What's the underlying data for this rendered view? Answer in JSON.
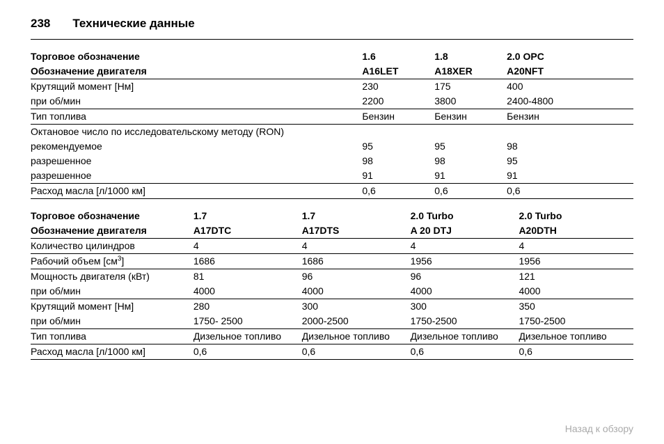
{
  "page_number": "238",
  "section_title": "Технические данные",
  "table1": {
    "columns": [
      "",
      "1.6",
      "1.8",
      "2.0 OPC"
    ],
    "header_row1_label": "Торговое обозначение",
    "header_row2_label": "Обозначение двигателя",
    "header_row2_vals": [
      "A16LET",
      "A18XER",
      "A20NFT"
    ],
    "rows": [
      {
        "label": "Крутящий момент [Нм]",
        "vals": [
          "230",
          "175",
          "400"
        ],
        "border": false
      },
      {
        "label": "при об/мин",
        "vals": [
          "2200",
          "3800",
          "2400-4800"
        ],
        "border": true
      },
      {
        "label": "Тип топлива",
        "vals": [
          "Бензин",
          "Бензин",
          "Бензин"
        ],
        "border": true
      },
      {
        "label": "Октановое число по исследовательскому методу (RON)",
        "vals": [
          "",
          "",
          ""
        ],
        "border": false
      },
      {
        "label": "рекомендуемое",
        "vals": [
          "95",
          "95",
          "98"
        ],
        "border": false
      },
      {
        "label": "разрешенное",
        "vals": [
          "98",
          "98",
          "95"
        ],
        "border": false
      },
      {
        "label": "разрешенное",
        "vals": [
          "91",
          "91",
          "91"
        ],
        "border": true
      },
      {
        "label": "Расход масла [л/1000 км]",
        "vals": [
          "0,6",
          "0,6",
          "0,6"
        ],
        "border": "thick"
      }
    ],
    "col_widths": [
      "55%",
      "12%",
      "12%",
      "21%"
    ]
  },
  "table2": {
    "header_row1_label": "Торговое обозначение",
    "header_row1_vals": [
      "1.7",
      "1.7",
      "2.0 Turbo",
      "2.0 Turbo"
    ],
    "header_row2_label": "Обозначение двигателя",
    "header_row2_vals": [
      "A17DTC",
      "A17DTS",
      "A 20 DTJ",
      "A20DTH"
    ],
    "rows": [
      {
        "label": "Количество цилиндров",
        "vals": [
          "4",
          "4",
          "4",
          "4"
        ],
        "border": true
      },
      {
        "label_html": "Рабочий объем [см<sup>3</sup>]",
        "vals": [
          "1686",
          "1686",
          "1956",
          "1956"
        ],
        "border": true
      },
      {
        "label": "Мощность двигателя (кВт)",
        "vals": [
          "81",
          "96",
          "96",
          "121"
        ],
        "border": false
      },
      {
        "label": "при об/мин",
        "vals": [
          "4000",
          "4000",
          "4000",
          "4000"
        ],
        "border": true
      },
      {
        "label": "Крутящий момент [Нм]",
        "vals": [
          "280",
          "300",
          "300",
          "350"
        ],
        "border": false
      },
      {
        "label": "при об/мин",
        "vals": [
          "1750- 2500",
          "2000-2500",
          "1750-2500",
          "1750-2500"
        ],
        "border": true
      },
      {
        "label": "Тип топлива",
        "vals": [
          "Дизельное топливо",
          "Дизельное топливо",
          "Дизельное топливо",
          "Дизельное топливо"
        ],
        "border": true
      },
      {
        "label": "Расход масла [л/1000 км]",
        "vals": [
          "0,6",
          "0,6",
          "0,6",
          "0,6"
        ],
        "border": "thick"
      }
    ],
    "col_widths": [
      "27%",
      "18%",
      "18%",
      "18%",
      "19%"
    ]
  },
  "back_link": "Назад к обзору"
}
